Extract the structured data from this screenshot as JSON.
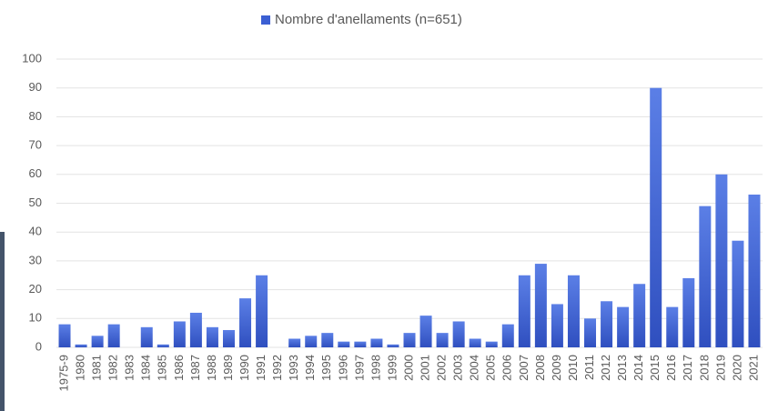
{
  "chart_data": {
    "type": "bar",
    "series": [
      {
        "name": "Nombre d'anellaments (n=651)",
        "color": "#3b5fd3",
        "values": [
          8,
          1,
          4,
          8,
          0,
          7,
          1,
          9,
          12,
          7,
          6,
          17,
          25,
          0,
          3,
          4,
          5,
          2,
          2,
          3,
          1,
          5,
          11,
          5,
          9,
          3,
          2,
          8,
          25,
          29,
          15,
          25,
          10,
          16,
          14,
          22,
          90,
          14,
          24,
          49,
          60,
          37,
          53
        ]
      }
    ],
    "categories": [
      "1975-9",
      "1980",
      "1981",
      "1982",
      "1983",
      "1984",
      "1985",
      "1986",
      "1987",
      "1988",
      "1989",
      "1990",
      "1991",
      "1992",
      "1993",
      "1994",
      "1995",
      "1996",
      "1997",
      "1998",
      "1999",
      "2000",
      "2001",
      "2002",
      "2003",
      "2004",
      "2005",
      "2006",
      "2007",
      "2008",
      "2009",
      "2010",
      "2011",
      "2012",
      "2013",
      "2014",
      "2015",
      "2016",
      "2017",
      "2018",
      "2019",
      "2020",
      "2021"
    ],
    "ylim": [
      0,
      100
    ],
    "yticks": [
      0,
      10,
      20,
      30,
      40,
      50,
      60,
      70,
      80,
      90,
      100
    ],
    "grid": true,
    "legend": "top"
  }
}
